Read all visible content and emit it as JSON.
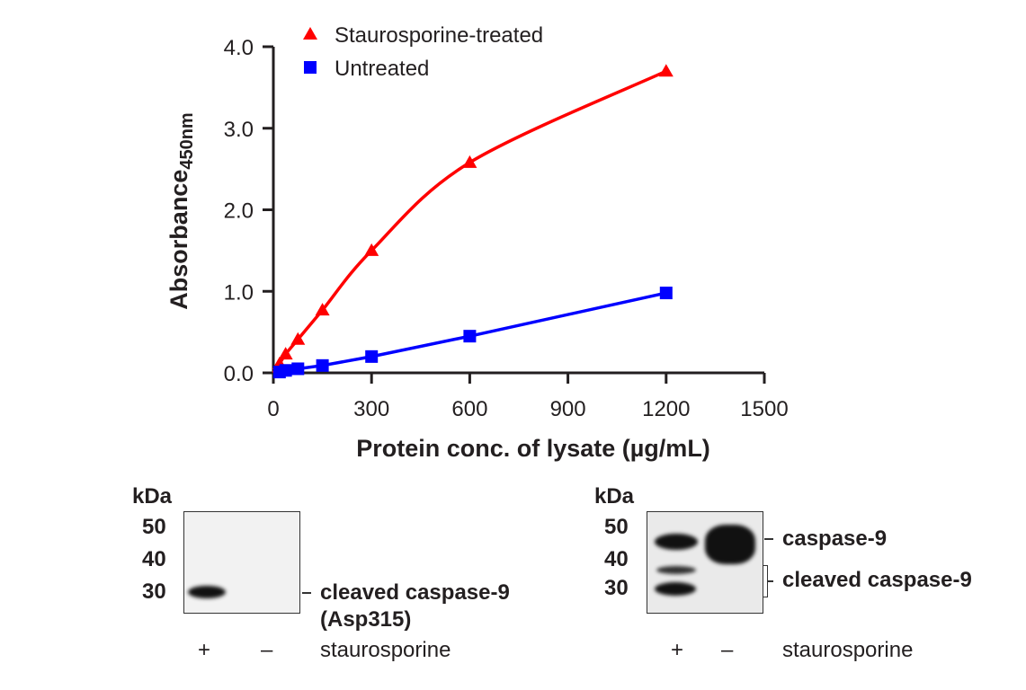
{
  "chart_data": {
    "type": "line",
    "title": "",
    "xlabel": "Protein conc. of lysate (µg/mL)",
    "ylabel": "Absorbance",
    "ylabel_subscript": "450nm",
    "xlim": [
      0,
      1500
    ],
    "ylim": [
      0,
      4.0
    ],
    "xticks": [
      0,
      300,
      600,
      900,
      1200,
      1500
    ],
    "xtick_labels": [
      "0",
      "300",
      "600",
      "900",
      "1200",
      "1500"
    ],
    "yticks": [
      0,
      1,
      2,
      3,
      4
    ],
    "ytick_labels": [
      "0.0",
      "1.0",
      "2.0",
      "3.0",
      "4.0"
    ],
    "grid": false,
    "legend_position": "top-left",
    "series": [
      {
        "name": "Staurosporine-treated",
        "color": "#ff0000",
        "marker": "triangle",
        "x": [
          18.75,
          37.5,
          75,
          150,
          300,
          600,
          1200
        ],
        "y": [
          0.11,
          0.23,
          0.41,
          0.77,
          1.5,
          2.58,
          3.7
        ]
      },
      {
        "name": "Untreated",
        "color": "#0000ff",
        "marker": "square",
        "x": [
          18.75,
          37.5,
          75,
          150,
          300,
          600,
          1200
        ],
        "y": [
          0.01,
          0.03,
          0.05,
          0.09,
          0.2,
          0.45,
          0.98
        ]
      }
    ]
  },
  "blots": [
    {
      "kda_label": "kDa",
      "markers": [
        "50",
        "40",
        "30"
      ],
      "band_labels": [
        "cleaved caspase-9",
        "(Asp315)"
      ],
      "lanes": [
        "+",
        "–"
      ],
      "treatment_label": "staurosporine"
    },
    {
      "kda_label": "kDa",
      "markers": [
        "50",
        "40",
        "30"
      ],
      "band_labels": [
        "caspase-9",
        "cleaved caspase-9"
      ],
      "lanes": [
        "+",
        "–"
      ],
      "treatment_label": "staurosporine"
    }
  ]
}
